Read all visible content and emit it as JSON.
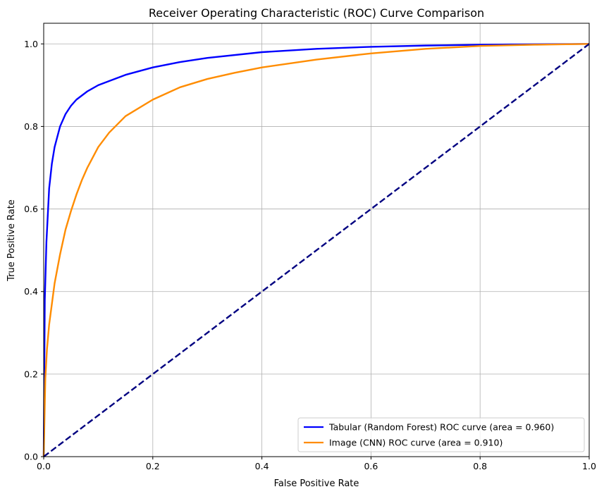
{
  "chart_data": {
    "type": "line",
    "title": "Receiver Operating Characteristic (ROC) Curve Comparison",
    "xlabel": "False Positive Rate",
    "ylabel": "True Positive Rate",
    "xlim": [
      0.0,
      1.0
    ],
    "ylim": [
      0.0,
      1.05
    ],
    "xticks": [
      0.0,
      0.2,
      0.4,
      0.6,
      0.8,
      1.0
    ],
    "yticks": [
      0.0,
      0.2,
      0.4,
      0.6,
      0.8,
      1.0
    ],
    "xtick_labels": [
      "0.0",
      "0.2",
      "0.4",
      "0.6",
      "0.8",
      "1.0"
    ],
    "ytick_labels": [
      "0.0",
      "0.2",
      "0.4",
      "0.6",
      "0.8",
      "1.0"
    ],
    "grid": true,
    "legend_position": "lower-right",
    "series": [
      {
        "name": "Tabular (Random Forest) ROC curve (area = 0.960)",
        "color": "#0000ff",
        "style": "solid",
        "x": [
          0.0,
          0.002,
          0.005,
          0.01,
          0.015,
          0.02,
          0.03,
          0.04,
          0.05,
          0.06,
          0.07,
          0.08,
          0.1,
          0.12,
          0.15,
          0.2,
          0.25,
          0.3,
          0.4,
          0.5,
          0.6,
          0.7,
          0.8,
          0.9,
          1.0
        ],
        "y": [
          0.0,
          0.38,
          0.52,
          0.65,
          0.71,
          0.75,
          0.8,
          0.83,
          0.85,
          0.865,
          0.875,
          0.885,
          0.9,
          0.91,
          0.925,
          0.943,
          0.956,
          0.966,
          0.98,
          0.988,
          0.993,
          0.996,
          0.998,
          0.999,
          1.0
        ]
      },
      {
        "name": "Image (CNN) ROC curve (area = 0.910)",
        "color": "#ff8c00",
        "style": "solid",
        "x": [
          0.0,
          0.003,
          0.006,
          0.01,
          0.015,
          0.02,
          0.03,
          0.04,
          0.05,
          0.06,
          0.07,
          0.08,
          0.1,
          0.12,
          0.15,
          0.2,
          0.25,
          0.3,
          0.35,
          0.4,
          0.5,
          0.6,
          0.7,
          0.8,
          0.9,
          1.0
        ],
        "y": [
          0.0,
          0.19,
          0.26,
          0.32,
          0.37,
          0.42,
          0.49,
          0.55,
          0.595,
          0.635,
          0.67,
          0.7,
          0.75,
          0.785,
          0.825,
          0.865,
          0.895,
          0.915,
          0.93,
          0.943,
          0.962,
          0.977,
          0.988,
          0.995,
          0.998,
          1.0
        ]
      },
      {
        "name": "",
        "color": "#000080",
        "style": "dashed",
        "x": [
          0.0,
          1.0
        ],
        "y": [
          0.0,
          1.0
        ]
      }
    ]
  }
}
